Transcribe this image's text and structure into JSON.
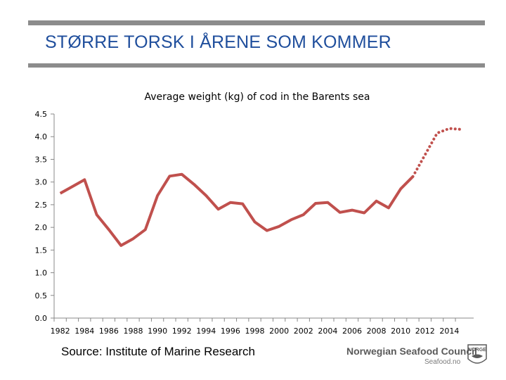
{
  "slide": {
    "title": "STØRRE TORSK I ÅRENE SOM KOMMER",
    "source": "Source: Institute of Marine Research",
    "logo_name": "Norwegian Seafood Council",
    "logo_url_text": "Seafood.no",
    "logo_badge": "NORGE"
  },
  "colors": {
    "title": "#1f4e9c",
    "series": "#c0504d",
    "rules": "#8c8c8c"
  },
  "chart_data": {
    "type": "line",
    "title": "Average weight (kg) of cod in the Barents sea",
    "xlabel": "",
    "ylabel": "",
    "ylim": [
      0,
      4.5
    ],
    "yticks": [
      "0.0",
      "0.5",
      "1.0",
      "1.5",
      "2.0",
      "2.5",
      "3.0",
      "3.5",
      "4.0",
      "4.5"
    ],
    "xticks": [
      "1982",
      "1984",
      "1986",
      "1988",
      "1990",
      "1992",
      "1994",
      "1996",
      "1998",
      "2000",
      "2002",
      "2004",
      "2006",
      "2008",
      "2010",
      "2012",
      "2014"
    ],
    "grid": false,
    "legend": "none",
    "series": [
      {
        "style": "solid",
        "x": [
          1982,
          1983,
          1984,
          1985,
          1986,
          1987,
          1988,
          1989,
          1990,
          1991,
          1992,
          1993,
          1994,
          1995,
          1996,
          1997,
          1998,
          1999,
          2000,
          2001,
          2002,
          2003,
          2004,
          2005,
          2006,
          2007,
          2008,
          2009,
          2010,
          2011
        ],
        "y": [
          2.75,
          2.9,
          3.05,
          2.28,
          1.95,
          1.6,
          1.75,
          1.95,
          2.7,
          3.13,
          3.17,
          2.95,
          2.7,
          2.4,
          2.55,
          2.52,
          2.12,
          1.93,
          2.02,
          2.17,
          2.28,
          2.53,
          2.55,
          2.33,
          2.38,
          2.32,
          2.58,
          2.43,
          2.85,
          3.12
        ]
      },
      {
        "style": "dotted",
        "x": [
          2011,
          2012,
          2013,
          2014,
          2015
        ],
        "y": [
          3.12,
          3.6,
          4.08,
          4.18,
          4.16
        ]
      }
    ]
  }
}
